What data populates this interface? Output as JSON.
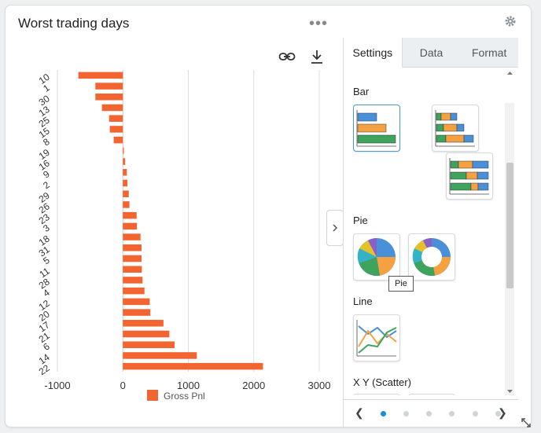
{
  "widget": {
    "title": "Worst trading days"
  },
  "toolbar": {
    "link_icon": "link-icon",
    "download_icon": "download-icon",
    "more_icon": "more-horizontal-icon",
    "settings_icon": "gear-icon"
  },
  "panel": {
    "tabs": [
      {
        "label": "Settings",
        "active": true
      },
      {
        "label": "Data",
        "active": false
      },
      {
        "label": "Format",
        "active": false
      }
    ],
    "sections": {
      "bar": "Bar",
      "pie": "Pie",
      "line": "Line",
      "scatter": "X Y (Scatter)"
    },
    "tooltip": "Pie",
    "pager": {
      "pages": 6,
      "current": 1
    }
  },
  "colors": {
    "bar": "#f26430",
    "grid": "#dddddd",
    "thumb_blue": "#4a90d9",
    "thumb_orange": "#f5a142",
    "thumb_green": "#3da35d",
    "thumb_yellow": "#e3c12a",
    "thumb_purple": "#8a5fc7",
    "thumb_teal": "#34b3c8",
    "accent": "#1a8fdc"
  },
  "chart_data": {
    "type": "bar",
    "orientation": "horizontal",
    "categories": [
      "10",
      "1",
      "30",
      "13",
      "25",
      "15",
      "8",
      "19",
      "16",
      "9",
      "2",
      "29",
      "26",
      "23",
      "3",
      "18",
      "31",
      "5",
      "11",
      "28",
      "4",
      "12",
      "20",
      "17",
      "21",
      "6",
      "14",
      "22"
    ],
    "series": [
      {
        "name": "Gross Pnl",
        "values": [
          -680,
          -420,
          -420,
          -320,
          -210,
          -200,
          -140,
          15,
          35,
          60,
          70,
          90,
          100,
          210,
          215,
          270,
          285,
          285,
          290,
          300,
          330,
          410,
          420,
          620,
          710,
          790,
          1130,
          2140
        ]
      }
    ],
    "xlim": [
      -1000,
      3000
    ],
    "xticks": [
      "-1000",
      "0",
      "1000",
      "2000",
      "3000"
    ],
    "grid": true,
    "legend_position": "bottom"
  }
}
